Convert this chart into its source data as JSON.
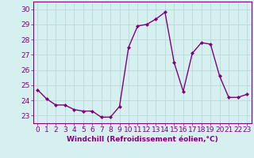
{
  "x": [
    0,
    1,
    2,
    3,
    4,
    5,
    6,
    7,
    8,
    9,
    10,
    11,
    12,
    13,
    14,
    15,
    16,
    17,
    18,
    19,
    20,
    21,
    22,
    23
  ],
  "y": [
    24.7,
    24.1,
    23.7,
    23.7,
    23.4,
    23.3,
    23.3,
    22.9,
    22.9,
    23.6,
    27.5,
    28.9,
    29.0,
    29.35,
    29.8,
    26.5,
    24.6,
    27.1,
    27.8,
    27.7,
    25.6,
    24.2,
    24.2,
    24.4
  ],
  "line_color": "#800080",
  "marker": "D",
  "marker_size": 2,
  "linewidth": 1.0,
  "xlabel": "Windchill (Refroidissement éolien,°C)",
  "xlabel_fontsize": 6.5,
  "ylim": [
    22.5,
    30.5
  ],
  "xlim": [
    -0.5,
    23.5
  ],
  "yticks": [
    23,
    24,
    25,
    26,
    27,
    28,
    29,
    30
  ],
  "xticks": [
    0,
    1,
    2,
    3,
    4,
    5,
    6,
    7,
    8,
    9,
    10,
    11,
    12,
    13,
    14,
    15,
    16,
    17,
    18,
    19,
    20,
    21,
    22,
    23
  ],
  "bg_color": "#d6f0f0",
  "grid_color": "#b8dada",
  "tick_color": "#800080",
  "tick_fontsize": 6.5,
  "spine_color": "#800080",
  "xlabel_color": "#800080",
  "xlabel_bold": true
}
